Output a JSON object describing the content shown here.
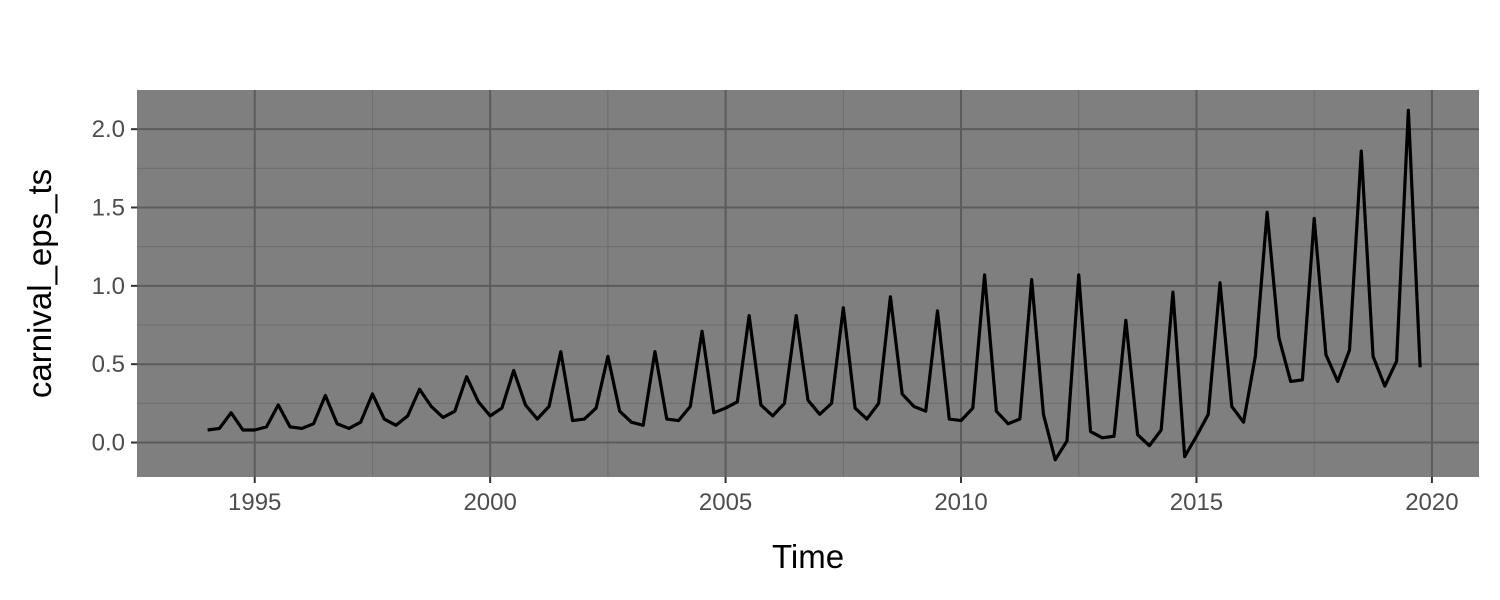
{
  "chart_data": {
    "type": "line",
    "title": "",
    "xlabel": "Time",
    "ylabel": "carnival_eps_ts",
    "xlim": [
      1992.5,
      2021.0
    ],
    "ylim": [
      -0.22,
      2.25
    ],
    "x_ticks": [
      1995,
      2000,
      2005,
      2010,
      2015,
      2020
    ],
    "x_tick_labels": [
      "1995",
      "2000",
      "2005",
      "2010",
      "2015",
      "2020"
    ],
    "y_ticks": [
      0.0,
      0.5,
      1.0,
      1.5,
      2.0
    ],
    "y_tick_labels": [
      "0.0",
      "0.5",
      "1.0",
      "1.5",
      "2.0"
    ],
    "grid": true,
    "legend": "none",
    "colors": {
      "panel_background": "#7f7f7f",
      "grid_major": "#5c5c5c",
      "grid_minor": "#6e6e6e",
      "line": "#000000"
    },
    "series": [
      {
        "start": 1994.0,
        "frequency": 4,
        "values": [
          0.08,
          0.09,
          0.19,
          0.08,
          0.08,
          0.1,
          0.24,
          0.1,
          0.09,
          0.12,
          0.3,
          0.12,
          0.09,
          0.13,
          0.31,
          0.15,
          0.11,
          0.17,
          0.34,
          0.23,
          0.16,
          0.2,
          0.42,
          0.26,
          0.17,
          0.22,
          0.46,
          0.24,
          0.15,
          0.23,
          0.58,
          0.14,
          0.15,
          0.22,
          0.55,
          0.2,
          0.13,
          0.11,
          0.58,
          0.15,
          0.14,
          0.23,
          0.71,
          0.19,
          0.22,
          0.26,
          0.81,
          0.24,
          0.17,
          0.25,
          0.81,
          0.27,
          0.18,
          0.25,
          0.86,
          0.22,
          0.15,
          0.25,
          0.93,
          0.31,
          0.23,
          0.2,
          0.84,
          0.15,
          0.14,
          0.22,
          1.07,
          0.2,
          0.12,
          0.15,
          1.04,
          0.18,
          -0.11,
          0.01,
          1.07,
          0.07,
          0.03,
          0.04,
          0.78,
          0.05,
          -0.02,
          0.08,
          0.96,
          -0.09,
          0.04,
          0.18,
          1.02,
          0.23,
          0.13,
          0.55,
          1.47,
          0.67,
          0.39,
          0.4,
          1.43,
          0.56,
          0.39,
          0.59,
          1.86,
          0.55,
          0.36,
          0.52,
          2.12,
          0.48
        ]
      }
    ]
  }
}
